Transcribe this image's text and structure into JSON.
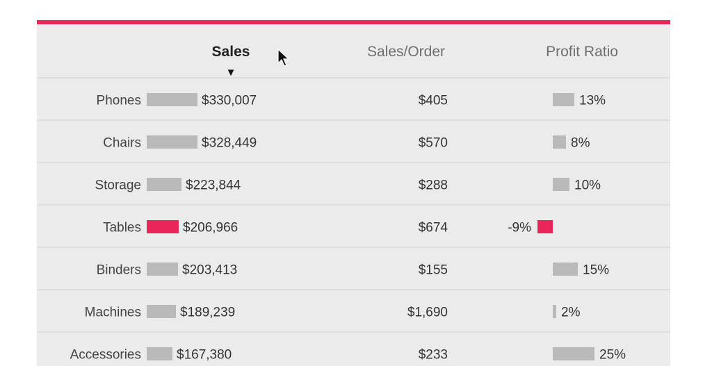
{
  "headers": {
    "sales": "Sales",
    "sales_per_order": "Sales/Order",
    "profit_ratio": "Profit Ratio",
    "sort_indicator": "▼"
  },
  "colors": {
    "accent": "#e8265a",
    "bar": "#b9b9b9",
    "panel_bg": "#ebebeb",
    "divider": "#d2d2d2"
  },
  "chart_data": {
    "type": "table",
    "columns": [
      "Sales",
      "Sales/Order",
      "Profit Ratio"
    ],
    "sort": {
      "column": "Sales",
      "direction": "descending"
    },
    "rows": [
      {
        "category": "Phones",
        "sales": 330007,
        "sales_label": "$330,007",
        "sales_per_order": "$405",
        "profit_ratio": 13,
        "profit_label": "13%"
      },
      {
        "category": "Chairs",
        "sales": 328449,
        "sales_label": "$328,449",
        "sales_per_order": "$570",
        "profit_ratio": 8,
        "profit_label": "8%"
      },
      {
        "category": "Storage",
        "sales": 223844,
        "sales_label": "$223,844",
        "sales_per_order": "$288",
        "profit_ratio": 10,
        "profit_label": "10%"
      },
      {
        "category": "Tables",
        "sales": 206966,
        "sales_label": "$206,966",
        "sales_per_order": "$674",
        "profit_ratio": -9,
        "profit_label": "-9%",
        "highlight": true
      },
      {
        "category": "Binders",
        "sales": 203413,
        "sales_label": "$203,413",
        "sales_per_order": "$155",
        "profit_ratio": 15,
        "profit_label": "15%"
      },
      {
        "category": "Machines",
        "sales": 189239,
        "sales_label": "$189,239",
        "sales_per_order": "$1,690",
        "profit_ratio": 2,
        "profit_label": "2%"
      },
      {
        "category": "Accessories",
        "sales": 167380,
        "sales_label": "$167,380",
        "sales_per_order": "$233",
        "profit_ratio": 25,
        "profit_label": "25%"
      }
    ]
  }
}
